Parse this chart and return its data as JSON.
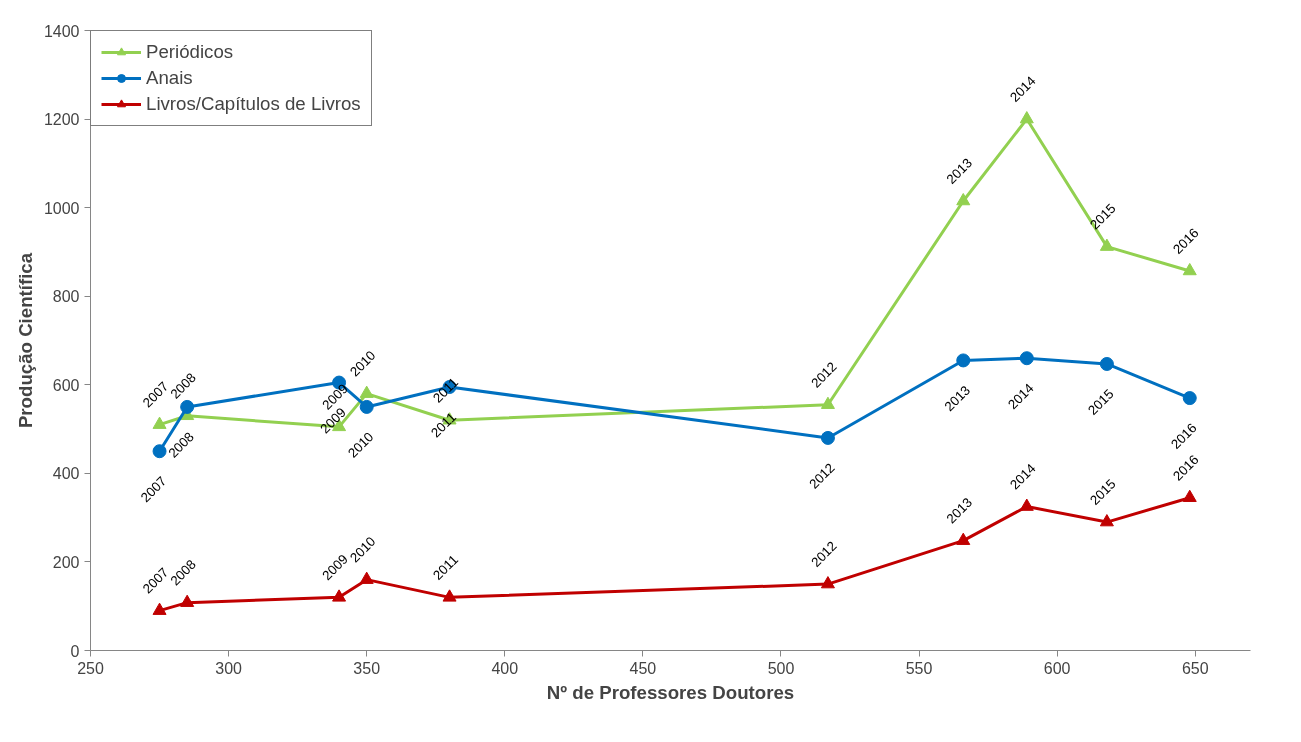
{
  "chart_data": {
    "type": "line",
    "xlabel": "Nº de Professores Doutores",
    "ylabel": "Produção Científica",
    "x": [
      275,
      285,
      340,
      350,
      380,
      517,
      566,
      589,
      618,
      648
    ],
    "series": [
      {
        "name": "Periódicos",
        "color": "#92d050",
        "marker": "triangle",
        "values": [
          510,
          530,
          505,
          580,
          520,
          555,
          1015,
          1200,
          912,
          857
        ]
      },
      {
        "name": "Anais",
        "color": "#0070c0",
        "marker": "circle",
        "values": [
          450,
          550,
          605,
          550,
          595,
          480,
          655,
          660,
          647,
          570
        ]
      },
      {
        "name": "Livros/Capítulos de Livros",
        "color": "#c00000",
        "marker": "triangle",
        "values": [
          90,
          108,
          120,
          160,
          120,
          150,
          248,
          325,
          290,
          345
        ]
      }
    ],
    "annotations": [
      {
        "text": "2007",
        "x": 275,
        "y": 510
      },
      {
        "text": "2008",
        "x": 285,
        "y": 530
      },
      {
        "text": "2009",
        "x": 340,
        "y": 505
      },
      {
        "text": "2010",
        "x": 350,
        "y": 580
      },
      {
        "text": "2011",
        "x": 380,
        "y": 520
      },
      {
        "text": "2012",
        "x": 517,
        "y": 555
      },
      {
        "text": "2013",
        "x": 566,
        "y": 1015
      },
      {
        "text": "2014",
        "x": 589,
        "y": 1200
      },
      {
        "text": "2015",
        "x": 618,
        "y": 912
      },
      {
        "text": "2016",
        "x": 648,
        "y": 857
      },
      {
        "text": "2007",
        "x": 275,
        "y": 450
      },
      {
        "text": "2008",
        "x": 285,
        "y": 550
      },
      {
        "text": "2009",
        "x": 340,
        "y": 605
      },
      {
        "text": "2010",
        "x": 350,
        "y": 550
      },
      {
        "text": "2011",
        "x": 380,
        "y": 595
      },
      {
        "text": "2012",
        "x": 517,
        "y": 480
      },
      {
        "text": "2013",
        "x": 566,
        "y": 655
      },
      {
        "text": "2014",
        "x": 589,
        "y": 660
      },
      {
        "text": "2015",
        "x": 618,
        "y": 647
      },
      {
        "text": "2016",
        "x": 648,
        "y": 570
      },
      {
        "text": "2007",
        "x": 275,
        "y": 90
      },
      {
        "text": "2008",
        "x": 285,
        "y": 108
      },
      {
        "text": "2009",
        "x": 340,
        "y": 120
      },
      {
        "text": "2010",
        "x": 350,
        "y": 160
      },
      {
        "text": "2011",
        "x": 380,
        "y": 120
      },
      {
        "text": "2012",
        "x": 517,
        "y": 150
      },
      {
        "text": "2013",
        "x": 566,
        "y": 248
      },
      {
        "text": "2014",
        "x": 589,
        "y": 325
      },
      {
        "text": "2015",
        "x": 618,
        "y": 290
      },
      {
        "text": "2016",
        "x": 648,
        "y": 345
      }
    ],
    "xlim": [
      250,
      670
    ],
    "ylim": [
      0,
      1400
    ],
    "xticks": [
      250,
      300,
      350,
      400,
      450,
      500,
      550,
      600,
      650
    ],
    "yticks": [
      0,
      200,
      400,
      600,
      800,
      1000,
      1200,
      1400
    ],
    "grid": false,
    "legend": "top left",
    "line_style": "solid"
  }
}
